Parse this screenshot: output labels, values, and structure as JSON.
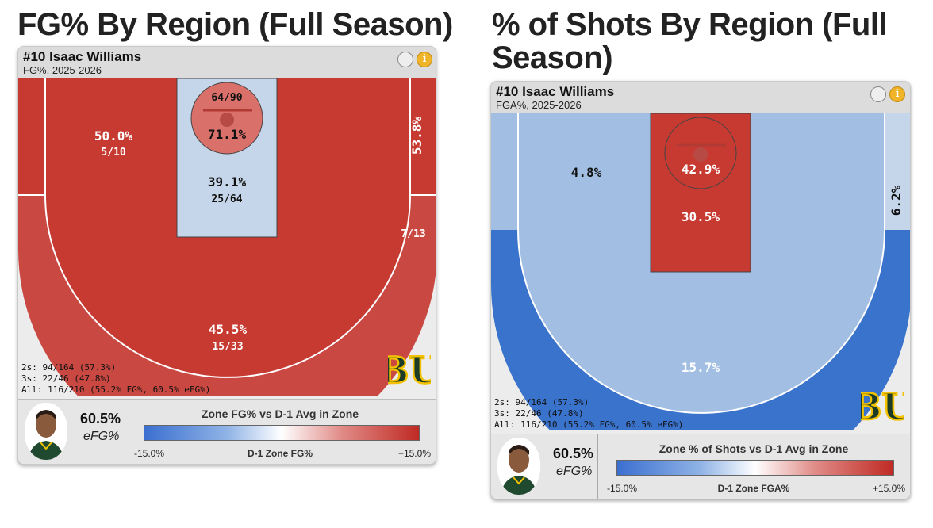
{
  "titles": {
    "left": "FG% By Region (Full Season)",
    "right": "% of Shots By Region (Full Season)"
  },
  "left_card": {
    "player": "#10 Isaac Williams",
    "subtitle": "FG%, 2025-2026",
    "totals": [
      "2s: 94/164 (57.3%)",
      "3s: 22/46 (47.8%)",
      "All: 116/210 (55.2% FG%, 60.5% eFG%)"
    ],
    "efg_value": "60.5%",
    "efg_label": "eFG%",
    "legend_title": "Zone FG% vs D-1 Avg in Zone",
    "legend_min": "-15.0%",
    "legend_mid": "D-1 Zone FG%",
    "legend_max": "+15.0%",
    "logo_text": "BU"
  },
  "right_card": {
    "player": "#10 Isaac Williams",
    "subtitle": "FGA%, 2025-2026",
    "totals": [
      "2s: 94/164 (57.3%)",
      "3s: 22/46 (47.8%)",
      "All: 116/210 (55.2% FG%, 60.5% eFG%)"
    ],
    "efg_value": "60.5%",
    "efg_label": "eFG%",
    "legend_title": "Zone % of Shots vs D-1 Avg in Zone",
    "legend_min": "-15.0%",
    "legend_mid": "D-1 Zone FGA%",
    "legend_max": "+15.0%",
    "logo_text": "BU"
  },
  "chart_data": [
    {
      "type": "heatmap",
      "title": "FG% By Region (Full Season)",
      "zones": [
        {
          "zone": "rim",
          "pct": "71.1%",
          "made_att": "64/90",
          "value": 71.1,
          "color": "#d9706a"
        },
        {
          "zone": "paint",
          "pct": "39.1%",
          "made_att": "25/64",
          "value": 39.1,
          "color": "#c5d6ea"
        },
        {
          "zone": "mid-range",
          "pct": "50.0%",
          "made_att": "5/10",
          "value": 50.0,
          "color": "#c63a31"
        },
        {
          "zone": "right-corner-mid",
          "pct": "53.8%",
          "made_att": "7/13",
          "value": 53.8,
          "color": "#c63a31"
        },
        {
          "zone": "three-point",
          "pct": "45.5%",
          "made_att": "15/33",
          "value": 45.5,
          "color": "#c94842"
        }
      ],
      "color_scale": {
        "min_label": "-15.0%",
        "max_label": "+15.0%",
        "low": "#3b6fd0",
        "mid": "#ffffff",
        "high": "#c02a23"
      }
    },
    {
      "type": "heatmap",
      "title": "% of Shots By Region (Full Season)",
      "zones": [
        {
          "zone": "rim",
          "pct": "42.9%",
          "value": 42.9,
          "color": "#c63a31"
        },
        {
          "zone": "paint",
          "pct": "30.5%",
          "value": 30.5,
          "color": "#c63a31"
        },
        {
          "zone": "mid-range",
          "pct": "4.8%",
          "value": 4.8,
          "color": "#a2bfe3"
        },
        {
          "zone": "right-corner-mid",
          "pct": "6.2%",
          "value": 6.2,
          "color": "#c5d6ea"
        },
        {
          "zone": "three-point",
          "pct": "15.7%",
          "value": 15.7,
          "color": "#3a73cc"
        }
      ],
      "color_scale": {
        "min_label": "-15.0%",
        "max_label": "+15.0%",
        "low": "#3b6fd0",
        "mid": "#ffffff",
        "high": "#c02a23"
      }
    }
  ]
}
